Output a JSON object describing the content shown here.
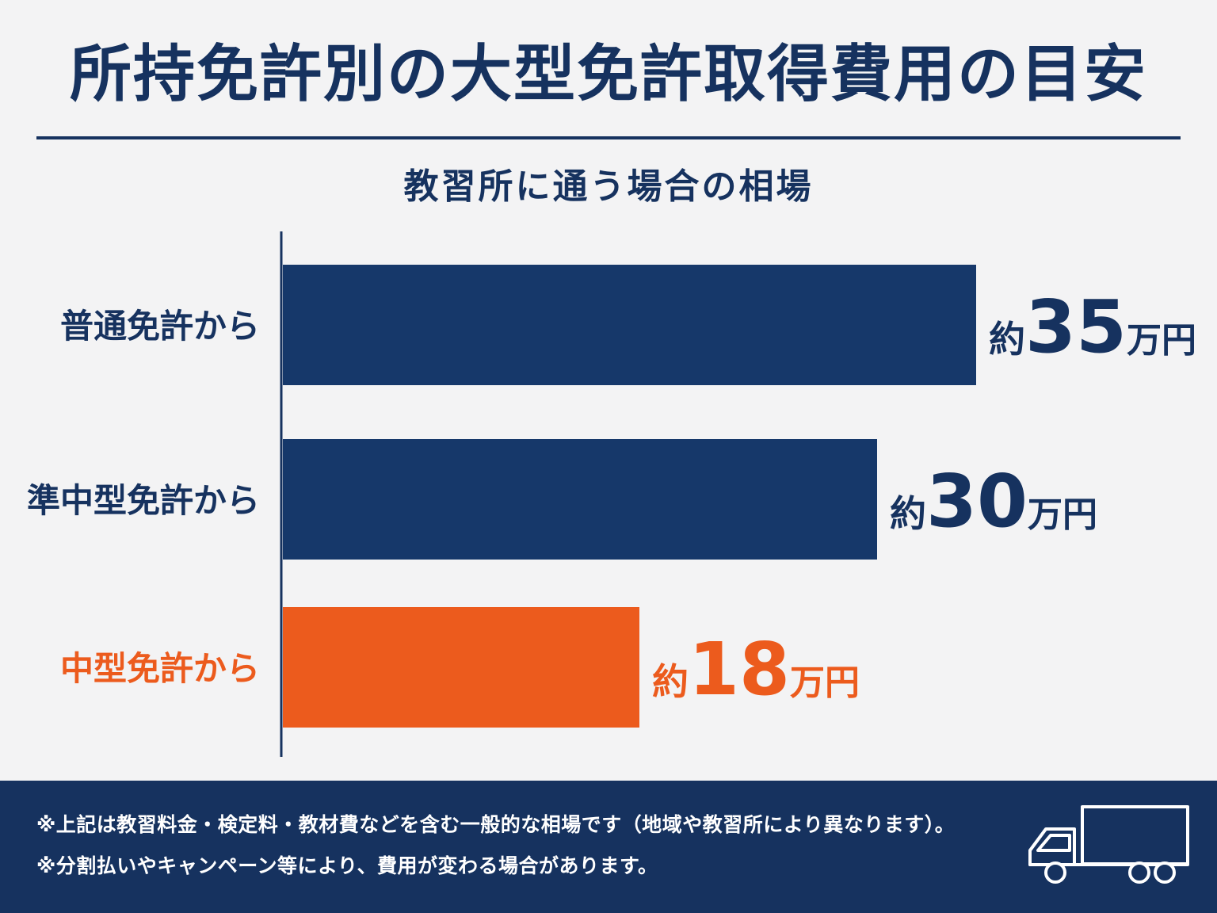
{
  "header": {
    "title": "所持免許別の大型免許取得費用の目安"
  },
  "chart_data": {
    "type": "bar",
    "orientation": "horizontal",
    "title": "教習所に通う場合の相場",
    "categories": [
      "普通免許から",
      "準中型免許から",
      "中型免許から"
    ],
    "values": [
      35,
      30,
      18
    ],
    "unit": "万円",
    "label_prefix": "約",
    "highlight_index": 2,
    "colors": {
      "bar": "#16386a",
      "highlight": "#ec5b1d",
      "label": "#16325f"
    },
    "xlim": [
      0,
      40
    ],
    "grid": false
  },
  "footer": {
    "notes": [
      "※上記は教習料金・検定料・教材費などを含む一般的な相場です（地域や教習所により異なります）。",
      "※分割払いやキャンペーン等により、費用が変わる場合があります。"
    ],
    "icon": "truck-icon"
  }
}
